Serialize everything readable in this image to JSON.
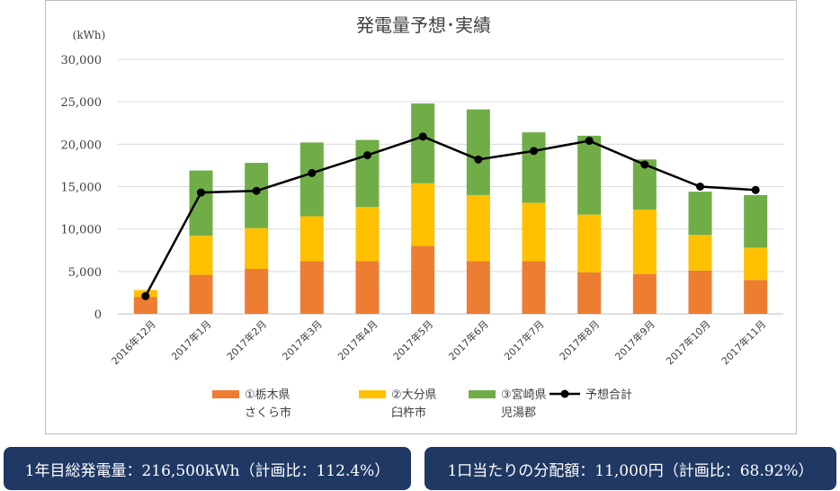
{
  "chart_data": {
    "type": "bar",
    "stacked": true,
    "title": "発電量予想･実績",
    "unit_label": "(kWh)",
    "categories": [
      "2016年12月",
      "2017年1月",
      "2017年2月",
      "2017年3月",
      "2017年4月",
      "2017年5月",
      "2017年6月",
      "2017年7月",
      "2017年8月",
      "2017年9月",
      "2017年10月",
      "2017年11月"
    ],
    "ylim": [
      0,
      30000
    ],
    "yticks": [
      0,
      5000,
      10000,
      15000,
      20000,
      25000,
      30000
    ],
    "ytick_labels": [
      "0",
      "5,000",
      "10,000",
      "15,000",
      "20,000",
      "25,000",
      "30,000"
    ],
    "grid": true,
    "legend_position": "bottom",
    "series": [
      {
        "name": "①栃木県 さくら市",
        "name_lines": [
          "①栃木県",
          "さくら市"
        ],
        "type": "bar",
        "color": "#ed7d31",
        "values": [
          2000,
          4600,
          5300,
          6200,
          6200,
          8000,
          6200,
          6200,
          4900,
          4700,
          5100,
          4000
        ]
      },
      {
        "name": "②大分県 臼杵市",
        "name_lines": [
          "②大分県",
          "臼杵市"
        ],
        "type": "bar",
        "color": "#ffc000",
        "values": [
          800,
          4600,
          4800,
          5300,
          6400,
          7400,
          7800,
          6900,
          6800,
          7600,
          4200,
          3800
        ]
      },
      {
        "name": "③宮崎県 児湯郡",
        "name_lines": [
          "③宮崎県",
          "児湯郡"
        ],
        "type": "bar",
        "color": "#70ad47",
        "values": [
          0,
          7700,
          7700,
          8700,
          7900,
          9400,
          10100,
          8300,
          9300,
          5900,
          5100,
          6200
        ]
      },
      {
        "name": "予想合計",
        "name_lines": [
          "予想合計"
        ],
        "type": "line",
        "color": "#000000",
        "values": [
          2100,
          14300,
          14500,
          16600,
          18700,
          20900,
          18200,
          19200,
          20400,
          17600,
          15000,
          14600
        ]
      }
    ]
  },
  "stats": {
    "left": "1年目総発電量：216,500kWh（計画比：112.4%）",
    "right": "1口当たりの分配額：11,000円（計画比：68.92%）"
  }
}
